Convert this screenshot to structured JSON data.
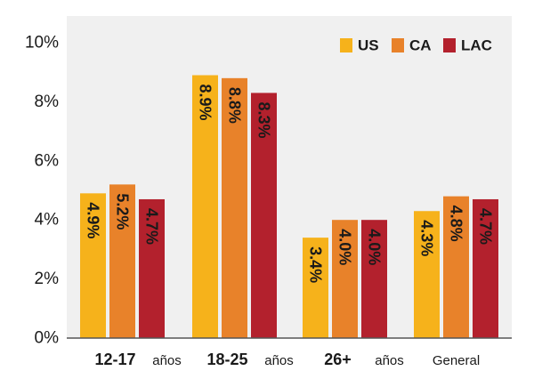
{
  "chart_data": {
    "type": "bar",
    "categories": [
      "12-17 años",
      "18-25 años",
      "26+ años",
      "General"
    ],
    "category_labels": [
      {
        "main": "12-17",
        "sub": "años"
      },
      {
        "main": "18-25",
        "sub": "años"
      },
      {
        "main": "26+",
        "sub": "años"
      },
      {
        "main": "",
        "sub": "General"
      }
    ],
    "series": [
      {
        "name": "US",
        "color": "#F6B21B",
        "values": [
          4.9,
          8.9,
          3.4,
          4.3
        ],
        "labels": [
          "4.9%",
          "8.9%",
          "3.4%",
          "4.3%"
        ]
      },
      {
        "name": "CA",
        "color": "#E8822A",
        "values": [
          5.2,
          8.8,
          4.0,
          4.8
        ],
        "labels": [
          "5.2%",
          "8.8%",
          "4.0%",
          "4.8%"
        ]
      },
      {
        "name": "LAC",
        "color": "#B3212D",
        "values": [
          4.7,
          8.3,
          4.0,
          4.7
        ],
        "labels": [
          "4.7%",
          "8.3%",
          "4.0%",
          "4.7%"
        ]
      }
    ],
    "yticks": [
      0,
      2,
      4,
      6,
      8,
      10
    ],
    "ytick_labels": [
      "0%",
      "2%",
      "4%",
      "6%",
      "8%",
      "10%"
    ],
    "ylim": [
      0,
      10
    ],
    "title": "",
    "xlabel": "",
    "ylabel": "",
    "legend_position": "top-right",
    "grid": false,
    "background_color": "#F0F0F0"
  }
}
